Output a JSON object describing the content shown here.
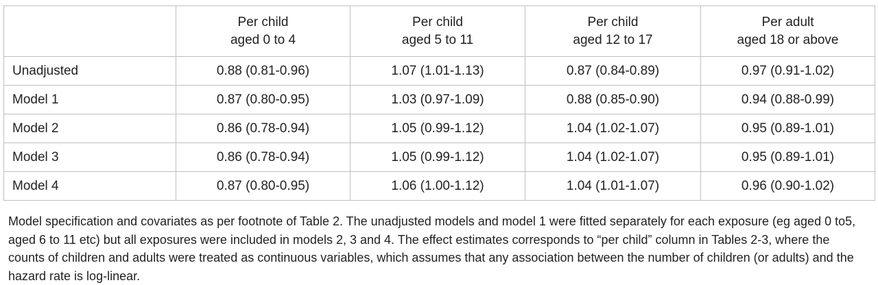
{
  "table": {
    "corner": "",
    "columns": [
      {
        "line1": "Per child",
        "line2": "aged 0 to 4"
      },
      {
        "line1": "Per child",
        "line2": "aged 5 to 11"
      },
      {
        "line1": "Per child",
        "line2": "aged 12 to 17"
      },
      {
        "line1": "Per adult",
        "line2": "aged 18 or above"
      }
    ],
    "rows": [
      {
        "label": "Unadjusted",
        "cells": [
          "0.88 (0.81-0.96)",
          "1.07 (1.01-1.13)",
          "0.87 (0.84-0.89)",
          "0.97 (0.91-1.02)"
        ]
      },
      {
        "label": "Model 1",
        "cells": [
          "0.87 (0.80-0.95)",
          "1.03 (0.97-1.09)",
          "0.88 (0.85-0.90)",
          "0.94 (0.88-0.99)"
        ]
      },
      {
        "label": "Model 2",
        "cells": [
          "0.86 (0.78-0.94)",
          "1.05 (0.99-1.12)",
          "1.04 (1.02-1.07)",
          "0.95 (0.89-1.01)"
        ]
      },
      {
        "label": "Model 3",
        "cells": [
          "0.86 (0.78-0.94)",
          "1.05 (0.99-1.12)",
          "1.04 (1.02-1.07)",
          "0.95 (0.89-1.01)"
        ]
      },
      {
        "label": "Model 4",
        "cells": [
          "0.87 (0.80-0.95)",
          "1.06 (1.00-1.12)",
          "1.04 (1.01-1.07)",
          "0.96 (0.90-1.02)"
        ]
      }
    ]
  },
  "footnote": "Model specification and covariates as per footnote of Table 2.  The unadjusted models and model 1 were fitted separately for each exposure (eg aged 0 to5, aged 6 to 11 etc) but all exposures were included in models 2, 3 and 4. The effect estimates corresponds to “per child” column in Tables 2-3, where the counts of children and adults were treated as continuous variables, which assumes that any association between the number of children (or adults) and the hazard rate is log-linear."
}
